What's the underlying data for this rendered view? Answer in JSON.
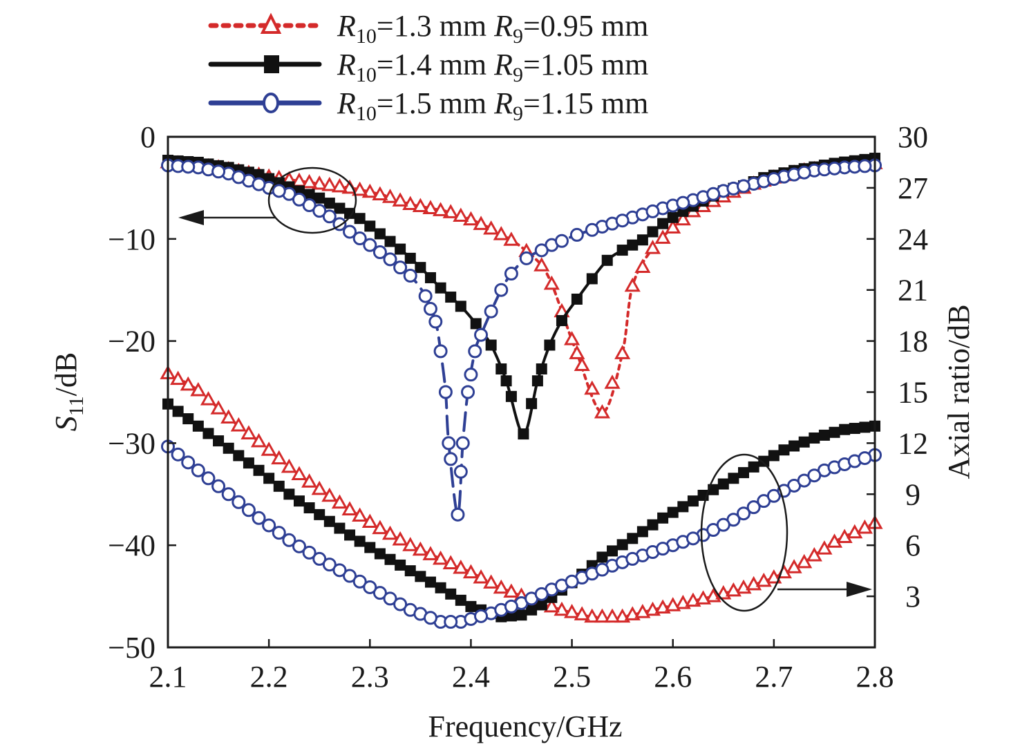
{
  "chart_data": {
    "type": "line",
    "title": "",
    "xlabel": "Frequency/GHz",
    "ylabel_left": {
      "main": "S",
      "sub": "11",
      "rest": "/dB"
    },
    "ylabel_right": "Axial ratio/dB",
    "xlim": [
      2.1,
      2.8
    ],
    "ylim_left": [
      -50,
      0
    ],
    "ylim_right": [
      0,
      30
    ],
    "x_ticks": [
      "2.1",
      "2.2",
      "2.3",
      "2.4",
      "2.5",
      "2.6",
      "2.7",
      "2.8"
    ],
    "x_tick_values": [
      2.1,
      2.2,
      2.3,
      2.4,
      2.5,
      2.6,
      2.7,
      2.8
    ],
    "y_left_ticks": [
      "0",
      "−10",
      "−20",
      "−30",
      "−40",
      "−50"
    ],
    "y_left_tick_values": [
      0,
      -10,
      -20,
      -30,
      -40,
      -50
    ],
    "y_right_ticks": [
      "30",
      "27",
      "24",
      "21",
      "18",
      "15",
      "12",
      "9",
      "6",
      "3"
    ],
    "y_right_tick_values": [
      30,
      27,
      24,
      21,
      18,
      15,
      12,
      9,
      6,
      3
    ],
    "grid": false,
    "legend_position": "top-center",
    "legend": [
      {
        "r10": "R",
        "r10_sub": "10",
        "r10_val": "=1.3 mm ",
        "r9": "R",
        "r9_sub": "9",
        "r9_val": "=0.95 mm",
        "color": "#d42a2a",
        "marker": "triangle-open",
        "dash": "dotted"
      },
      {
        "r10": "R",
        "r10_sub": "10",
        "r10_val": "=1.4 mm ",
        "r9": "R",
        "r9_sub": "9",
        "r9_val": "=1.05 mm",
        "color": "#111111",
        "marker": "square-filled",
        "dash": "solid"
      },
      {
        "r10": "R",
        "r10_sub": "10",
        "r10_val": "=1.5 mm ",
        "r9": "R",
        "r9_sub": "9",
        "r9_val": "=1.15 mm",
        "color": "#2e3f94",
        "marker": "circle-open",
        "dash": "dashed"
      }
    ],
    "annotations": [
      {
        "type": "ellipse-arrow",
        "target_axis": "left",
        "description": "S11 curves refer to left axis"
      },
      {
        "type": "ellipse-arrow",
        "target_axis": "right",
        "description": "Axial ratio curves refer to right axis"
      }
    ],
    "series": [
      {
        "name": "R10=1.3 mm R9=0.95 mm S11",
        "axis": "left",
        "style": 0,
        "x": [
          2.1,
          2.15,
          2.2,
          2.25,
          2.28,
          2.3,
          2.32,
          2.34,
          2.36,
          2.38,
          2.4,
          2.42,
          2.44,
          2.455,
          2.47,
          2.48,
          2.49,
          2.505,
          2.53,
          2.55,
          2.56,
          2.58,
          2.6,
          2.62,
          2.64,
          2.66,
          2.68,
          2.7,
          2.73,
          2.76,
          2.8
        ],
        "y": [
          -2.5,
          -3.0,
          -3.9,
          -4.6,
          -5.0,
          -5.4,
          -5.9,
          -6.6,
          -7.0,
          -7.4,
          -8.1,
          -9.0,
          -10.1,
          -11.2,
          -12.6,
          -14.4,
          -17.1,
          -21.2,
          -27.0,
          -21.2,
          -14.6,
          -10.9,
          -8.9,
          -7.3,
          -6.3,
          -5.4,
          -4.6,
          -4.0,
          -3.3,
          -2.9,
          -2.6
        ]
      },
      {
        "name": "R10=1.4 mm R9=1.05 mm S11",
        "axis": "left",
        "style": 1,
        "x": [
          2.1,
          2.13,
          2.16,
          2.19,
          2.21,
          2.23,
          2.25,
          2.27,
          2.29,
          2.31,
          2.33,
          2.35,
          2.37,
          2.39,
          2.405,
          2.42,
          2.435,
          2.452,
          2.466,
          2.478,
          2.49,
          2.505,
          2.52,
          2.535,
          2.55,
          2.57,
          2.59,
          2.61,
          2.63,
          2.65,
          2.67,
          2.69,
          2.72,
          2.76,
          2.8
        ],
        "y": [
          -2.3,
          -2.5,
          -3.0,
          -3.7,
          -4.5,
          -5.3,
          -6.0,
          -7.0,
          -8.0,
          -9.5,
          -11.0,
          -12.8,
          -14.8,
          -16.6,
          -18.3,
          -20.4,
          -23.9,
          -29.1,
          -23.9,
          -20.4,
          -18.0,
          -15.9,
          -13.9,
          -12.1,
          -11.1,
          -10.1,
          -8.5,
          -7.3,
          -6.3,
          -5.3,
          -4.8,
          -4.0,
          -3.3,
          -2.6,
          -2.1
        ]
      },
      {
        "name": "R10=1.5 mm R9=1.15 mm S11",
        "axis": "left",
        "style": 2,
        "x": [
          2.1,
          2.13,
          2.16,
          2.18,
          2.2,
          2.22,
          2.24,
          2.26,
          2.28,
          2.3,
          2.32,
          2.34,
          2.355,
          2.365,
          2.37,
          2.375,
          2.378,
          2.387,
          2.392,
          2.397,
          2.404,
          2.41,
          2.42,
          2.43,
          2.44,
          2.455,
          2.48,
          2.505,
          2.53,
          2.56,
          2.59,
          2.62,
          2.65,
          2.68,
          2.71,
          2.74,
          2.77,
          2.8
        ],
        "y": [
          -2.8,
          -3.0,
          -3.6,
          -4.3,
          -5.0,
          -5.6,
          -6.7,
          -7.8,
          -9.3,
          -10.6,
          -12.0,
          -13.6,
          -15.6,
          -18.1,
          -21.0,
          -25.0,
          -30.0,
          -37.0,
          -30.0,
          -25.0,
          -21.0,
          -19.4,
          -17.1,
          -15.0,
          -13.4,
          -11.9,
          -10.6,
          -9.6,
          -8.8,
          -7.9,
          -7.0,
          -6.2,
          -5.3,
          -4.6,
          -3.9,
          -3.3,
          -3.0,
          -2.8
        ]
      },
      {
        "name": "R10=1.3 mm R9=0.95 mm AR",
        "axis": "right",
        "style": 0,
        "x": [
          2.1,
          2.13,
          2.16,
          2.19,
          2.22,
          2.25,
          2.28,
          2.31,
          2.34,
          2.37,
          2.4,
          2.43,
          2.46,
          2.49,
          2.52,
          2.55,
          2.58,
          2.61,
          2.64,
          2.67,
          2.7,
          2.73,
          2.76,
          2.8
        ],
        "y": [
          16.1,
          15.1,
          13.5,
          12.1,
          10.6,
          9.3,
          8.1,
          7.0,
          6.0,
          5.2,
          4.4,
          3.5,
          2.8,
          2.2,
          1.8,
          1.8,
          2.2,
          2.6,
          3.0,
          3.5,
          4.1,
          5.0,
          6.2,
          7.3
        ]
      },
      {
        "name": "R10=1.4 mm R9=1.05 mm AR",
        "axis": "right",
        "style": 1,
        "x": [
          2.1,
          2.13,
          2.16,
          2.19,
          2.22,
          2.25,
          2.28,
          2.31,
          2.34,
          2.37,
          2.4,
          2.43,
          2.45,
          2.47,
          2.5,
          2.53,
          2.56,
          2.59,
          2.62,
          2.65,
          2.68,
          2.71,
          2.74,
          2.77,
          2.8
        ],
        "y": [
          14.3,
          13.0,
          11.7,
          10.4,
          9.0,
          7.8,
          6.6,
          5.5,
          4.5,
          3.5,
          2.4,
          1.8,
          1.9,
          2.5,
          3.8,
          5.3,
          6.4,
          7.6,
          8.6,
          9.6,
          10.6,
          11.6,
          12.3,
          12.8,
          13.0
        ]
      },
      {
        "name": "R10=1.5 mm R9=1.15 mm AR",
        "axis": "right",
        "style": 2,
        "x": [
          2.1,
          2.13,
          2.16,
          2.19,
          2.22,
          2.25,
          2.28,
          2.31,
          2.34,
          2.37,
          2.39,
          2.42,
          2.45,
          2.48,
          2.51,
          2.54,
          2.57,
          2.6,
          2.63,
          2.66,
          2.69,
          2.72,
          2.75,
          2.8
        ],
        "y": [
          11.8,
          10.4,
          9.0,
          7.6,
          6.3,
          5.2,
          4.2,
          3.2,
          2.2,
          1.5,
          1.5,
          2.0,
          2.6,
          3.4,
          4.1,
          4.8,
          5.4,
          6.0,
          6.6,
          7.5,
          8.6,
          9.5,
          10.4,
          11.3
        ]
      }
    ]
  }
}
